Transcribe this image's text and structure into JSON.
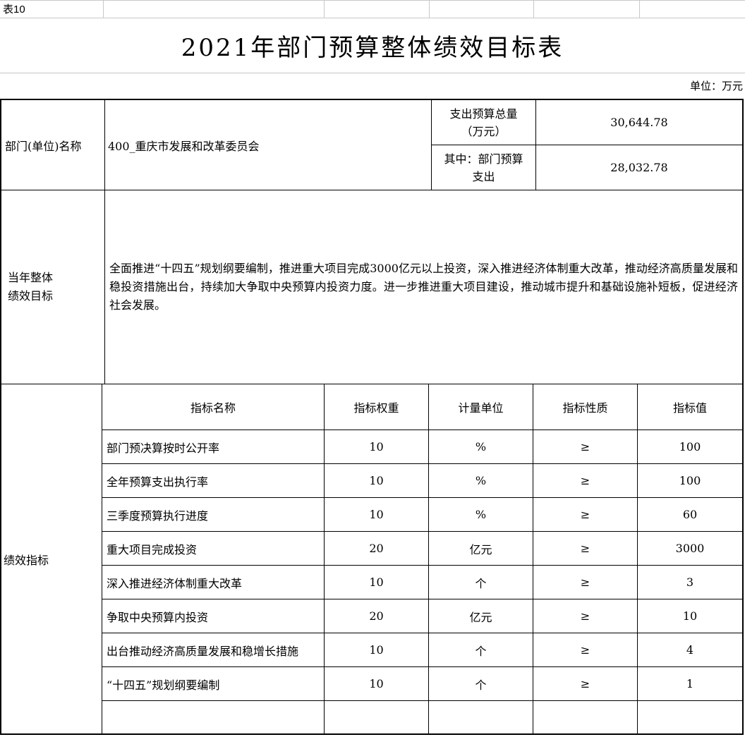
{
  "sheet": {
    "corner_label": "表10",
    "title": "2021年部门预算整体绩效目标表",
    "unit_note": "单位：万元"
  },
  "dept_row": {
    "name_label": "部门(单位)名称",
    "name_value": "400_重庆市发展和改革委员会",
    "budget_total_label": "支出预算总量（万元）",
    "budget_total_value": "30,644.78",
    "dept_budget_label": "其中：部门预算支出",
    "dept_budget_value": "28,032.78"
  },
  "annual_goal": {
    "label": "当年整体绩效目标",
    "text": "全面推进“十四五”规划纲要编制，推进重大项目完成3000亿元以上投资，深入推进经济体制重大改革，推动经济高质量发展和稳投资措施出台，持续加大争取中央预算内投资力度。进一步推进重大项目建设，推动城市提升和基础设施补短板，促进经济社会发展。"
  },
  "indicators": {
    "label": "绩效指标",
    "columns": [
      "指标名称",
      "指标权重",
      "计量单位",
      "指标性质",
      "指标值"
    ],
    "rows": [
      [
        "部门预决算按时公开率",
        "10",
        "%",
        "≥",
        "100"
      ],
      [
        "全年预算支出执行率",
        "10",
        "%",
        "≥",
        "100"
      ],
      [
        "三季度预算执行进度",
        "10",
        "%",
        "≥",
        "60"
      ],
      [
        "重大项目完成投资",
        "20",
        "亿元",
        "≥",
        "3000"
      ],
      [
        "深入推进经济体制重大改革",
        "10",
        "个",
        "≥",
        "3"
      ],
      [
        "争取中央预算内投资",
        "20",
        "亿元",
        "≥",
        "10"
      ],
      [
        "出台推动经济高质量发展和稳增长措施",
        "10",
        "个",
        "≥",
        "4"
      ],
      [
        "“十四五”规划纲要编制",
        "10",
        "个",
        "≥",
        "1"
      ],
      [
        "",
        "",
        "",
        "",
        ""
      ]
    ]
  },
  "colors": {
    "table_border": "#000000",
    "sheet_grid": "#c8c8c8",
    "text": "#000000",
    "background": "#ffffff"
  }
}
